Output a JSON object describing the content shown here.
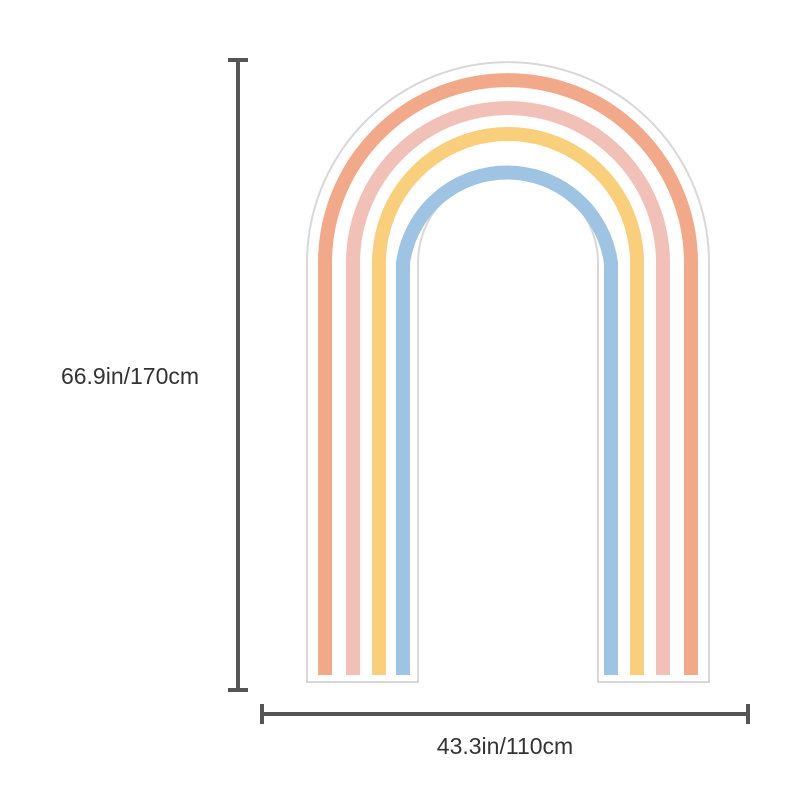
{
  "height_label": "66.9in/170cm",
  "width_label": "43.3in/110cm"
}
